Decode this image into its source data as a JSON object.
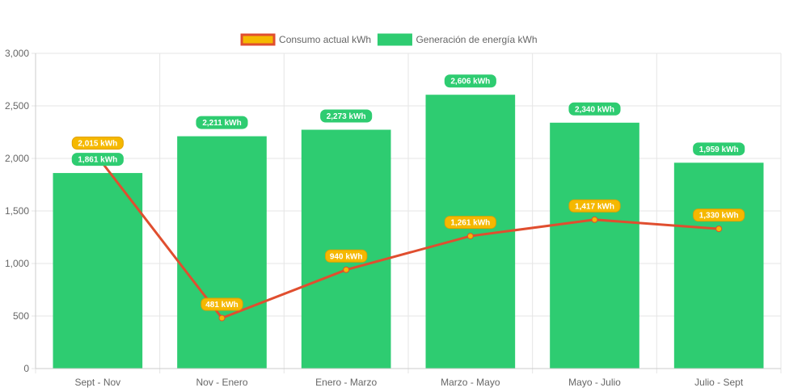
{
  "chart_data": {
    "type": "bar",
    "categories": [
      "Sept - Nov",
      "Nov - Enero",
      "Enero - Marzo",
      "Marzo - Mayo",
      "Mayo - Julio",
      "Julio - Sept"
    ],
    "ylim": [
      0,
      3000
    ],
    "yticks": [
      0,
      500,
      1000,
      1500,
      2000,
      2500,
      3000
    ],
    "ytick_labels": [
      "0",
      "500",
      "1,000",
      "1,500",
      "2,000",
      "2,500",
      "3,000"
    ],
    "grid": true,
    "legend_position": "top",
    "series": [
      {
        "name": "Consumo actual kWh",
        "kind": "line",
        "values": [
          2015,
          481,
          940,
          1261,
          1417,
          1330
        ],
        "labels": [
          "2,015 kWh",
          "481 kWh",
          "940 kWh",
          "1,261 kWh",
          "1,417 kWh",
          "1,330 kWh"
        ],
        "color": "#e04e2f",
        "fill_color": "#f5b800"
      },
      {
        "name": "Generación de energía kWh",
        "kind": "bar",
        "values": [
          1861,
          2211,
          2273,
          2606,
          2340,
          1959
        ],
        "labels": [
          "1,861 kWh",
          "2,211 kWh",
          "2,273 kWh",
          "2,606 kWh",
          "2,340 kWh",
          "1,959 kWh"
        ],
        "color": "#2ecc71"
      }
    ]
  }
}
